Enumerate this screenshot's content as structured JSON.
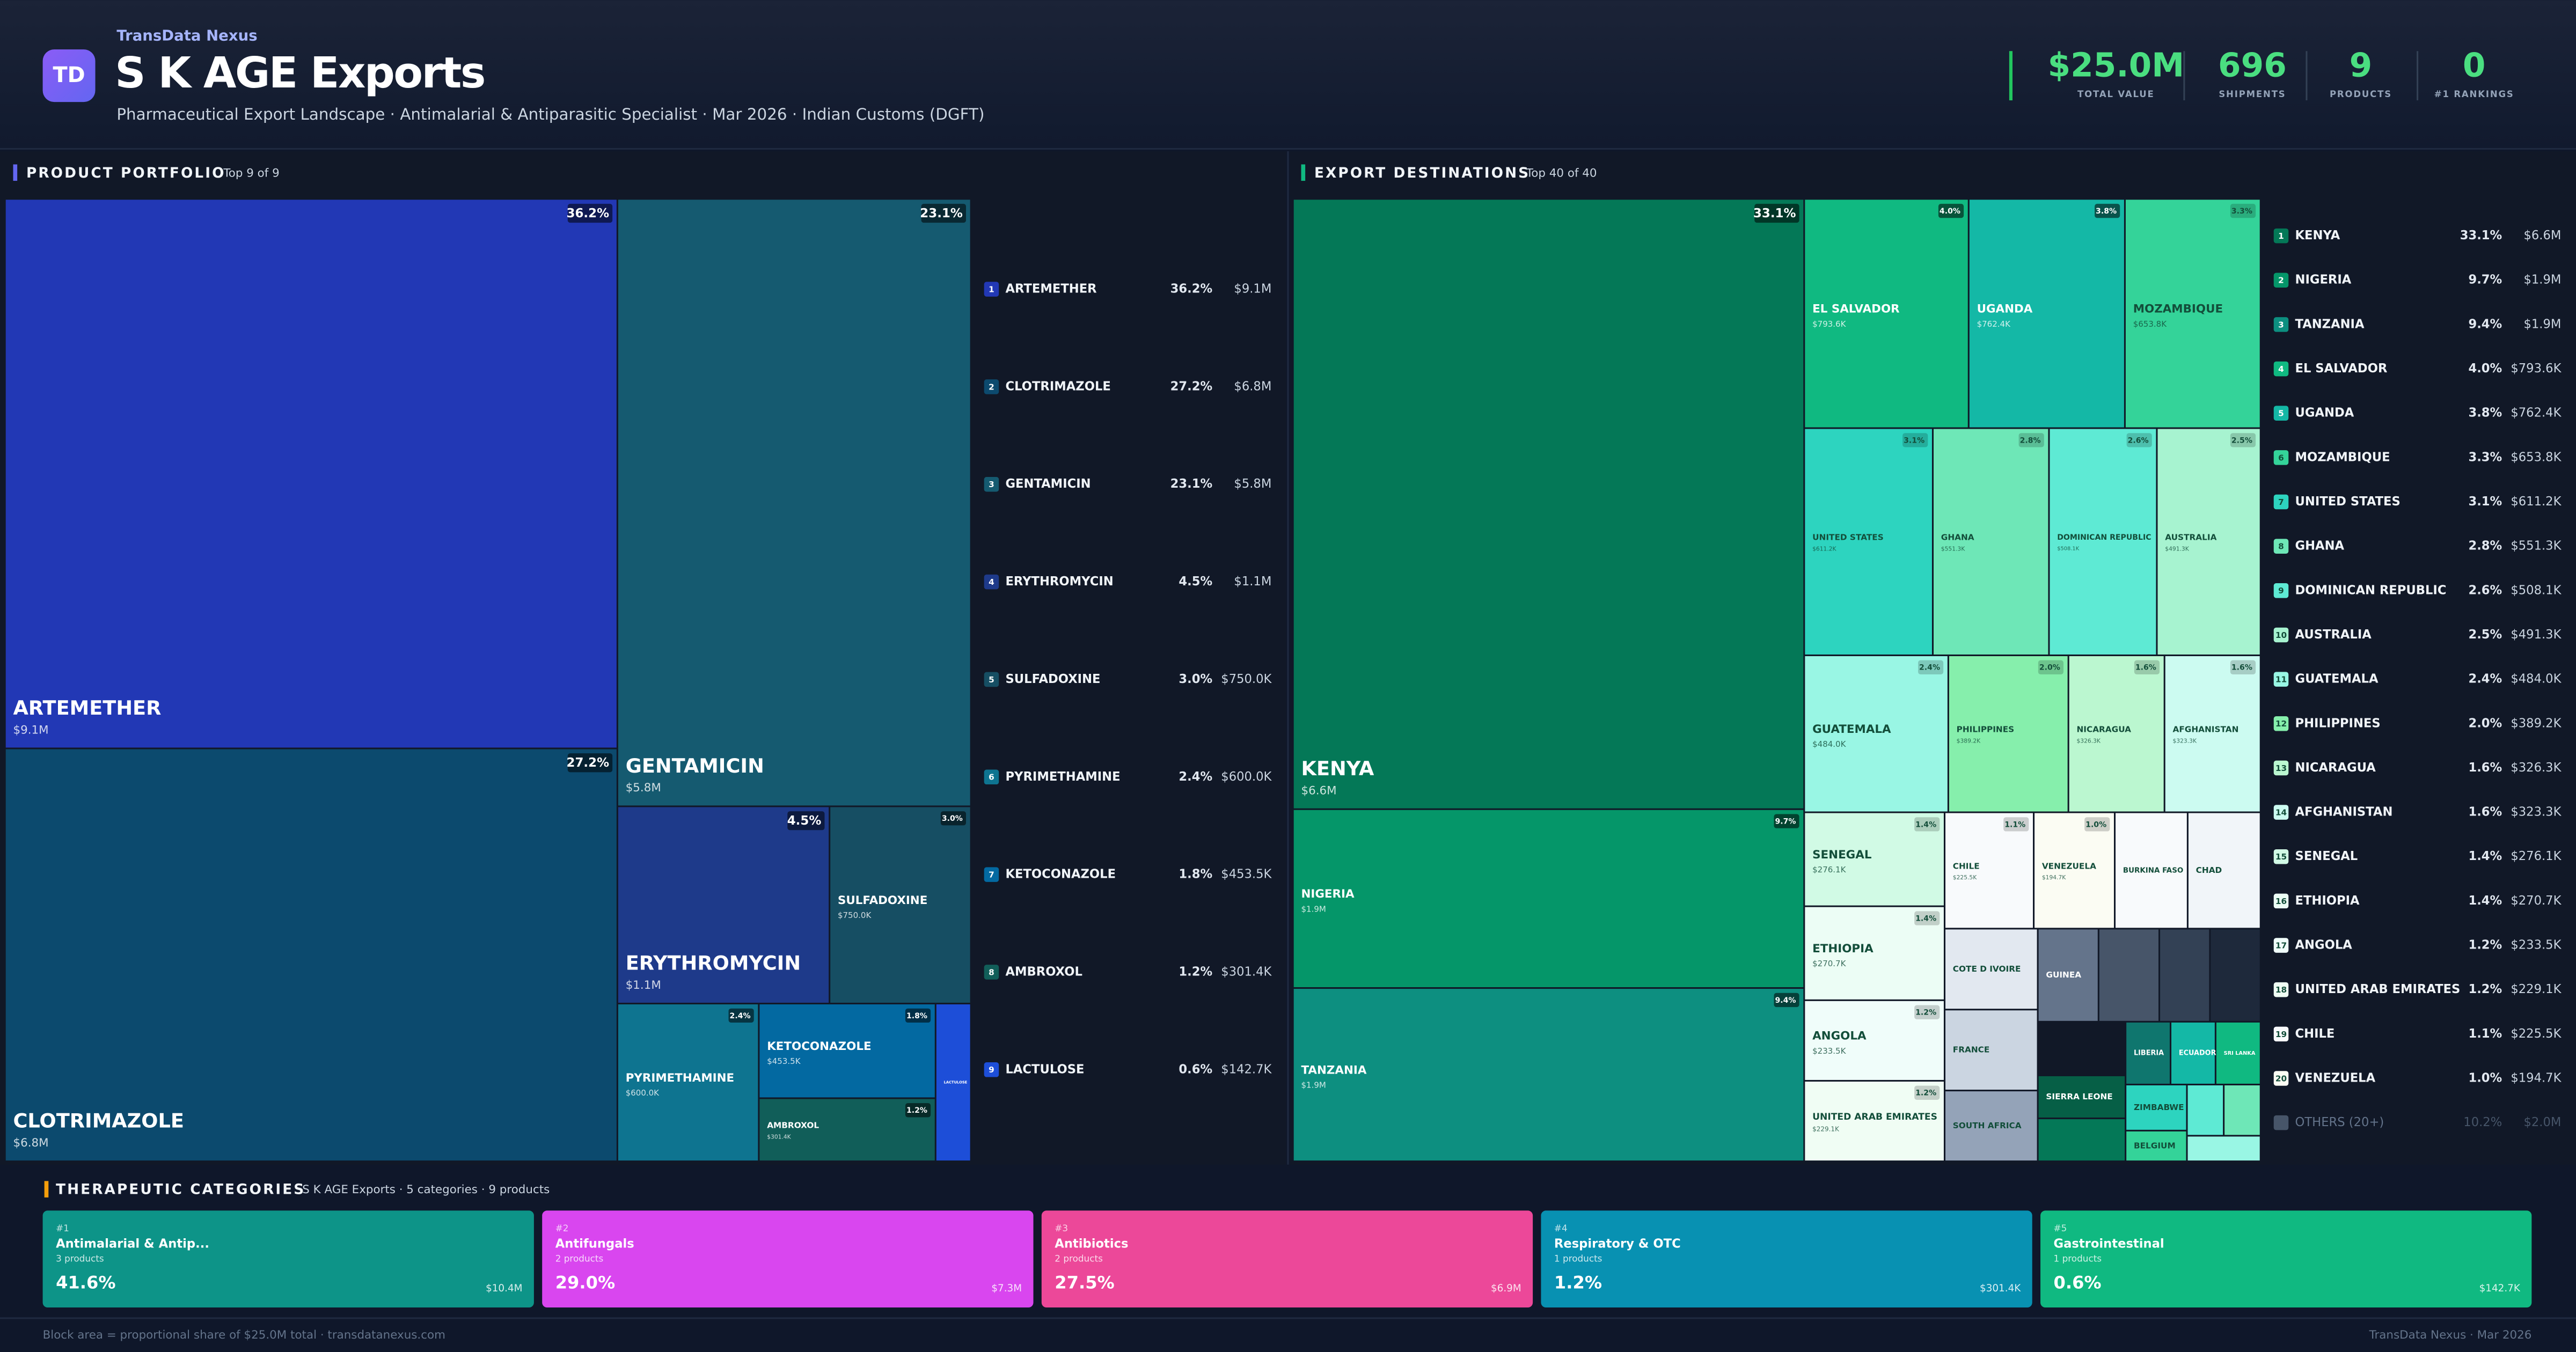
{
  "header": {
    "logo": "TD",
    "brand": "TransData Nexus",
    "title": "S K AGE Exports",
    "subtitle": "Pharmaceutical Export Landscape · Antimalarial & Antiparasitic Specialist · Mar 2026 · Indian Customs (DGFT)",
    "kpis": [
      {
        "value": "$25.0M",
        "label": "TOTAL VALUE"
      },
      {
        "value": "696",
        "label": "SHIPMENTS"
      },
      {
        "value": "9",
        "label": "PRODUCTS"
      },
      {
        "value": "0",
        "label": "#1 RANKINGS"
      }
    ]
  },
  "products": {
    "title": "PRODUCT PORTFOLIO",
    "badge": "Top 9 of 9",
    "items": [
      {
        "rank": 1,
        "name": "ARTEMETHER",
        "share": 36.2,
        "share_label": "36.2%",
        "value": "$9.1M",
        "color": "#2238b5"
      },
      {
        "rank": 2,
        "name": "CLOTRIMAZOLE",
        "share": 27.2,
        "share_label": "27.2%",
        "value": "$6.8M",
        "color": "#0c4a6e"
      },
      {
        "rank": 3,
        "name": "GENTAMICIN",
        "share": 23.1,
        "share_label": "23.1%",
        "value": "$5.8M",
        "color": "#155a70"
      },
      {
        "rank": 4,
        "name": "ERYTHROMYCIN",
        "share": 4.5,
        "share_label": "4.5%",
        "value": "$1.1M",
        "color": "#1e3a8a"
      },
      {
        "rank": 5,
        "name": "SULFADOXINE",
        "share": 3.0,
        "share_label": "3.0%",
        "value": "$750.0K",
        "color": "#164e63"
      },
      {
        "rank": 6,
        "name": "PYRIMETHAMINE",
        "share": 2.4,
        "share_label": "2.4%",
        "value": "$600.0K",
        "color": "#0e7490"
      },
      {
        "rank": 7,
        "name": "KETOCONAZOLE",
        "share": 1.8,
        "share_label": "1.8%",
        "value": "$453.5K",
        "color": "#0369a1"
      },
      {
        "rank": 8,
        "name": "AMBROXOL",
        "share": 1.2,
        "share_label": "1.2%",
        "value": "$301.4K",
        "color": "#115e59"
      },
      {
        "rank": 9,
        "name": "LACTULOSE",
        "share": 0.6,
        "share_label": "0.6%",
        "value": "$142.7K",
        "color": "#1d4ed8"
      }
    ]
  },
  "destinations": {
    "title": "EXPORT DESTINATIONS",
    "badge": "Top 40 of 40",
    "items": [
      {
        "rank": 1,
        "name": "KENYA",
        "share": 33.1,
        "share_label": "33.1%",
        "value": "$6.6M",
        "color": "#047857"
      },
      {
        "rank": 2,
        "name": "NIGERIA",
        "share": 9.7,
        "share_label": "9.7%",
        "value": "$1.9M",
        "color": "#059669"
      },
      {
        "rank": 3,
        "name": "TANZANIA",
        "share": 9.4,
        "share_label": "9.4%",
        "value": "$1.9M",
        "color": "#0d8f80"
      },
      {
        "rank": 4,
        "name": "EL SALVADOR",
        "share": 4.0,
        "share_label": "4.0%",
        "value": "$793.6K",
        "color": "#10b981"
      },
      {
        "rank": 5,
        "name": "UGANDA",
        "share": 3.8,
        "share_label": "3.8%",
        "value": "$762.4K",
        "color": "#14b8a6"
      },
      {
        "rank": 6,
        "name": "MOZAMBIQUE",
        "share": 3.3,
        "share_label": "3.3%",
        "value": "$653.8K",
        "color": "#34d399"
      },
      {
        "rank": 7,
        "name": "UNITED STATES",
        "share": 3.1,
        "share_label": "3.1%",
        "value": "$611.2K",
        "color": "#2dd4bf"
      },
      {
        "rank": 8,
        "name": "GHANA",
        "share": 2.8,
        "share_label": "2.8%",
        "value": "$551.3K",
        "color": "#6ee7b7"
      },
      {
        "rank": 9,
        "name": "DOMINICAN REPUBLIC",
        "share": 2.6,
        "share_label": "2.6%",
        "value": "$508.1K",
        "color": "#5eead4"
      },
      {
        "rank": 10,
        "name": "AUSTRALIA",
        "share": 2.5,
        "share_label": "2.5%",
        "value": "$491.3K",
        "color": "#a7f3d0"
      },
      {
        "rank": 11,
        "name": "GUATEMALA",
        "share": 2.4,
        "share_label": "2.4%",
        "value": "$484.0K",
        "color": "#99f6e4"
      },
      {
        "rank": 12,
        "name": "PHILIPPINES",
        "share": 2.0,
        "share_label": "2.0%",
        "value": "$389.2K",
        "color": "#86efac"
      },
      {
        "rank": 13,
        "name": "NICARAGUA",
        "share": 1.6,
        "share_label": "1.6%",
        "value": "$326.3K",
        "color": "#bbf7d0"
      },
      {
        "rank": 14,
        "name": "AFGHANISTAN",
        "share": 1.6,
        "share_label": "1.6%",
        "value": "$323.3K",
        "color": "#ccfbf1"
      },
      {
        "rank": 15,
        "name": "SENEGAL",
        "share": 1.4,
        "share_label": "1.4%",
        "value": "$276.1K",
        "color": "#d1fae5"
      },
      {
        "rank": 16,
        "name": "ETHIOPIA",
        "share": 1.4,
        "share_label": "1.4%",
        "value": "$270.7K",
        "color": "#ecfdf5"
      },
      {
        "rank": 17,
        "name": "ANGOLA",
        "share": 1.2,
        "share_label": "1.2%",
        "value": "$233.5K",
        "color": "#f0fdfa"
      },
      {
        "rank": 18,
        "name": "UNITED ARAB EMIRATES",
        "share": 1.2,
        "share_label": "1.2%",
        "value": "$229.1K",
        "color": "#f0fdf4"
      },
      {
        "rank": 19,
        "name": "CHILE",
        "share": 1.1,
        "share_label": "1.1%",
        "value": "$225.5K",
        "color": "#f8fafc"
      },
      {
        "rank": 20,
        "name": "VENEZUELA",
        "share": 1.0,
        "share_label": "1.0%",
        "value": "$194.7K",
        "color": "#fbfcf3"
      },
      {
        "name": "BURKINA FASO",
        "share": 0.9,
        "color": "#f8fafc"
      },
      {
        "name": "CHAD",
        "share": 0.9,
        "color": "#f1f5f9"
      },
      {
        "name": "COTE D IVOIRE",
        "share": 0.8,
        "color": "#e2e8f0"
      },
      {
        "name": "FRANCE",
        "share": 0.8,
        "color": "#cbd5e1"
      },
      {
        "name": "SOUTH AFRICA",
        "share": 0.7,
        "color": "#94a3b8"
      },
      {
        "name": "GUINEA",
        "share": 0.6,
        "color": "#64748b"
      },
      {
        "name": null,
        "share": 0.6,
        "color": "#475569"
      },
      {
        "name": null,
        "share": 0.5,
        "color": "#334155"
      },
      {
        "name": null,
        "share": 0.5,
        "color": "#1e293b"
      },
      {
        "name": null,
        "share": 0.5,
        "color": "#111827"
      },
      {
        "name": "SIERRA LEONE",
        "share": 0.4,
        "color": "#065f46"
      },
      {
        "name": null,
        "share": 0.4,
        "color": "#047857"
      },
      {
        "name": "LIBERIA",
        "share": 0.3,
        "color": "#0f766e"
      },
      {
        "name": "ECUADOR",
        "share": 0.3,
        "color": "#14b8a6"
      },
      {
        "name": "SRI LANKA",
        "share": 0.3,
        "color": "#10b981"
      },
      {
        "name": "ZIMBABWE",
        "share": 0.3,
        "color": "#2dd4bf"
      },
      {
        "name": "BELGIUM",
        "share": 0.2,
        "color": "#34d399"
      },
      {
        "name": null,
        "share": 0.2,
        "color": "#5eead4"
      },
      {
        "name": null,
        "share": 0.2,
        "color": "#6ee7b7"
      },
      {
        "name": null,
        "share": 0.2,
        "color": "#99f6e4"
      }
    ],
    "others": {
      "label": "OTHERS (20+)",
      "share": "10.2%",
      "value": "$2.0M"
    }
  },
  "categories": {
    "title": "THERAPEUTIC CATEGORIES",
    "subtitle": "S K AGE Exports · 5 categories · 9 products",
    "cards": [
      {
        "rank": "#1",
        "name": "Antimalarial & Antip...",
        "count": "3 products",
        "share": "41.6%",
        "value": "$10.4M",
        "color": "#0d9488"
      },
      {
        "rank": "#2",
        "name": "Antifungals",
        "count": "2 products",
        "share": "29.0%",
        "value": "$7.3M",
        "color": "#d946ef"
      },
      {
        "rank": "#3",
        "name": "Antibiotics",
        "count": "2 products",
        "share": "27.5%",
        "value": "$6.9M",
        "color": "#ec4899"
      },
      {
        "rank": "#4",
        "name": "Respiratory & OTC",
        "count": "1 products",
        "share": "1.2%",
        "value": "$301.4K",
        "color": "#0891b2"
      },
      {
        "rank": "#5",
        "name": "Gastrointestinal",
        "count": "1 products",
        "share": "0.6%",
        "value": "$142.7K",
        "color": "#10b981"
      }
    ]
  },
  "footer": {
    "left": "Block area = proportional share of $25.0M total · transdatanexus.com",
    "right": "TransData Nexus · Mar 2026"
  }
}
